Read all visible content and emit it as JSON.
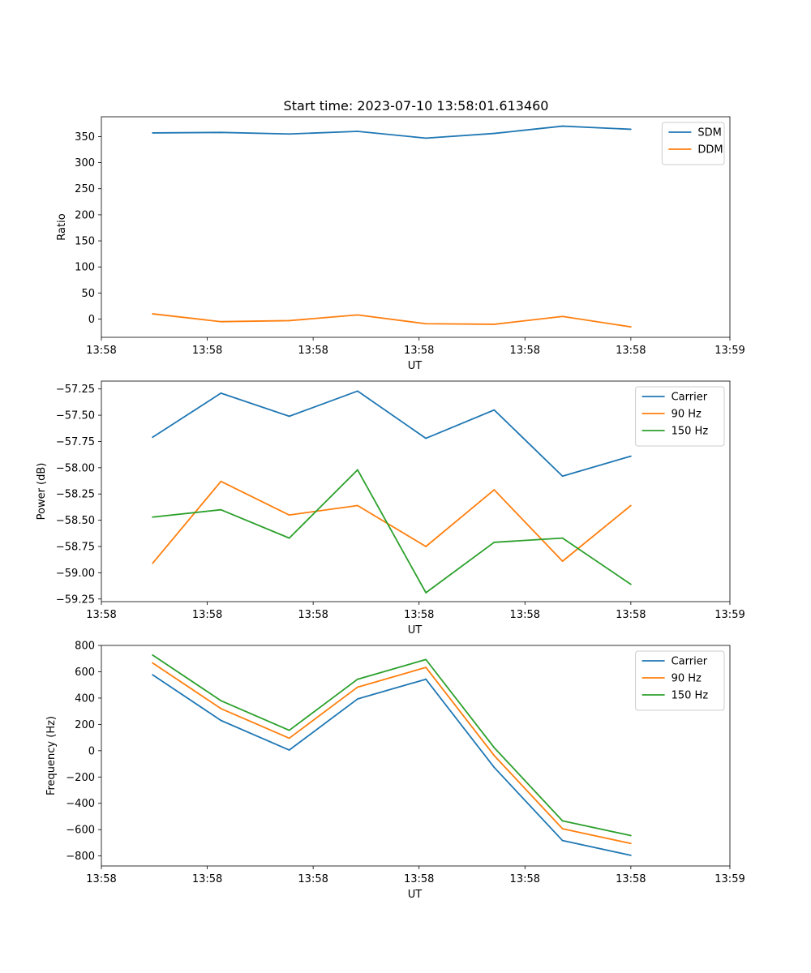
{
  "figure_title": "Start time: 2023-07-10 13:58:01.613460",
  "colors": {
    "blue": "#1f77b4",
    "orange": "#ff7f0e",
    "green": "#2ca02c"
  },
  "chart_data": [
    {
      "type": "line",
      "xlabel": "UT",
      "ylabel": "Ratio",
      "x": [
        0,
        1,
        2,
        3,
        4,
        5,
        6,
        7
      ],
      "xlim": [
        -0.75,
        8.45
      ],
      "x_ticks": [
        -0.75,
        0.8,
        2.35,
        3.9,
        5.45,
        7.0,
        8.45
      ],
      "x_tick_labels": [
        "13:58",
        "13:58",
        "13:58",
        "13:58",
        "13:58",
        "13:58",
        "13:59"
      ],
      "ylim": [
        -35,
        388
      ],
      "y_ticks": [
        0,
        50,
        100,
        150,
        200,
        250,
        300,
        350
      ],
      "y_tick_labels": [
        "0",
        "50",
        "100",
        "150",
        "200",
        "250",
        "300",
        "350"
      ],
      "legend_position": "top-right",
      "series": [
        {
          "name": "SDM",
          "color": "#1f77b4",
          "values": [
            357,
            358,
            355,
            360,
            347,
            356,
            370,
            364
          ]
        },
        {
          "name": "DDM",
          "color": "#ff7f0e",
          "values": [
            10,
            -5,
            -3,
            8,
            -9,
            -10,
            5,
            -15
          ]
        }
      ]
    },
    {
      "type": "line",
      "xlabel": "UT",
      "ylabel": "Power (dB)",
      "x": [
        0,
        1,
        2,
        3,
        4,
        5,
        6,
        7
      ],
      "xlim": [
        -0.75,
        8.45
      ],
      "x_ticks": [
        -0.75,
        0.8,
        2.35,
        3.9,
        5.45,
        7.0,
        8.45
      ],
      "x_tick_labels": [
        "13:58",
        "13:58",
        "13:58",
        "13:58",
        "13:58",
        "13:58",
        "13:59"
      ],
      "ylim": [
        -59.275,
        -57.175
      ],
      "y_ticks": [
        -59.25,
        -59.0,
        -58.75,
        -58.5,
        -58.25,
        -58.0,
        -57.75,
        -57.5,
        -57.25
      ],
      "y_tick_labels": [
        "−59.25",
        "−59.00",
        "−58.75",
        "−58.50",
        "−58.25",
        "−58.00",
        "−57.75",
        "−57.50",
        "−57.25"
      ],
      "legend_position": "top-right",
      "series": [
        {
          "name": "Carrier",
          "color": "#1f77b4",
          "values": [
            -57.71,
            -57.29,
            -57.51,
            -57.27,
            -57.72,
            -57.45,
            -58.08,
            -57.89
          ]
        },
        {
          "name": "90 Hz",
          "color": "#ff7f0e",
          "values": [
            -58.91,
            -58.13,
            -58.45,
            -58.36,
            -58.75,
            -58.21,
            -58.89,
            -58.36
          ]
        },
        {
          "name": "150 Hz",
          "color": "#2ca02c",
          "values": [
            -58.47,
            -58.4,
            -58.67,
            -58.02,
            -59.19,
            -58.71,
            -58.67,
            -59.11
          ]
        }
      ]
    },
    {
      "type": "line",
      "xlabel": "UT",
      "ylabel": "Frequency (Hz)",
      "x": [
        0,
        1,
        2,
        3,
        4,
        5,
        6,
        7
      ],
      "xlim": [
        -0.75,
        8.45
      ],
      "x_ticks": [
        -0.75,
        0.8,
        2.35,
        3.9,
        5.45,
        7.0,
        8.45
      ],
      "x_tick_labels": [
        "13:58",
        "13:58",
        "13:58",
        "13:58",
        "13:58",
        "13:58",
        "13:59"
      ],
      "ylim": [
        -876,
        800
      ],
      "y_ticks": [
        -800,
        -600,
        -400,
        -200,
        0,
        200,
        400,
        600,
        800
      ],
      "y_tick_labels": [
        "−800",
        "−600",
        "−400",
        "−200",
        "0",
        "200",
        "400",
        "600",
        "800"
      ],
      "legend_position": "top-right",
      "series": [
        {
          "name": "Carrier",
          "color": "#1f77b4",
          "values": [
            577,
            230,
            5,
            393,
            543,
            -127,
            -683,
            -795
          ]
        },
        {
          "name": "90 Hz",
          "color": "#ff7f0e",
          "values": [
            667,
            320,
            95,
            483,
            633,
            -37,
            -593,
            -705
          ]
        },
        {
          "name": "150 Hz",
          "color": "#2ca02c",
          "values": [
            727,
            380,
            155,
            543,
            693,
            23,
            -533,
            -645
          ]
        }
      ]
    }
  ]
}
